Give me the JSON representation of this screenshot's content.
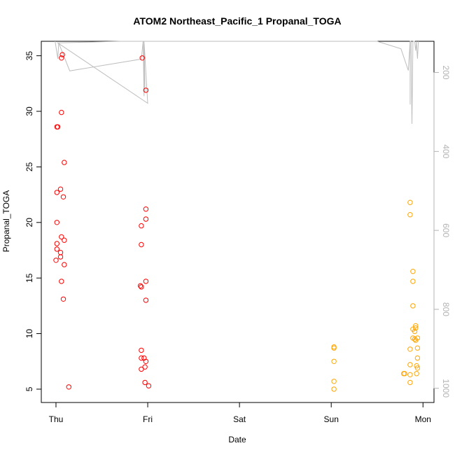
{
  "chart_data": {
    "type": "scatter",
    "title": "ATOM2 Northeast_Pacific_1 Propanal_TOGA",
    "xlabel": "Date",
    "ylabel": "Propanal_TOGA",
    "x_ticks": [
      "Thu",
      "Fri",
      "Sat",
      "Sun",
      "Mon"
    ],
    "xlim_days": [
      -0.16,
      4.12
    ],
    "ylim": [
      3.8,
      36.3
    ],
    "y_ticks": [
      5,
      10,
      15,
      20,
      25,
      30,
      35
    ],
    "y2_ticks": [
      200,
      400,
      600,
      800,
      1000
    ],
    "y2lim": [
      1036,
      121
    ],
    "grid": false,
    "legend": "none",
    "colors": {
      "series_a": "#ff0000",
      "series_b": "#ffa500",
      "altitude_line": "#bebebe",
      "right_axis": "#b3b3b3"
    },
    "series": [
      {
        "color": "#ff0000",
        "points": [
          {
            "x": 0.07,
            "y": 35.1
          },
          {
            "x": 0.06,
            "y": 34.8
          },
          {
            "x": 0.06,
            "y": 29.9
          },
          {
            "x": 0.01,
            "y": 28.6
          },
          {
            "x": 0.02,
            "y": 28.6
          },
          {
            "x": 0.09,
            "y": 25.4
          },
          {
            "x": 0.05,
            "y": 23.0
          },
          {
            "x": 0.01,
            "y": 22.7
          },
          {
            "x": 0.08,
            "y": 22.3
          },
          {
            "x": 0.01,
            "y": 20.0
          },
          {
            "x": 0.06,
            "y": 18.7
          },
          {
            "x": 0.09,
            "y": 18.4
          },
          {
            "x": 0.01,
            "y": 18.1
          },
          {
            "x": 0.01,
            "y": 17.6
          },
          {
            "x": 0.05,
            "y": 17.3
          },
          {
            "x": 0.05,
            "y": 16.9
          },
          {
            "x": 0.0,
            "y": 16.6
          },
          {
            "x": 0.09,
            "y": 16.2
          },
          {
            "x": 0.06,
            "y": 14.7
          },
          {
            "x": 0.08,
            "y": 13.1
          },
          {
            "x": 0.14,
            "y": 5.2
          },
          {
            "x": 0.94,
            "y": 34.8
          },
          {
            "x": 0.98,
            "y": 31.9
          },
          {
            "x": 0.98,
            "y": 21.2
          },
          {
            "x": 0.98,
            "y": 20.3
          },
          {
            "x": 0.93,
            "y": 19.7
          },
          {
            "x": 0.93,
            "y": 18.0
          },
          {
            "x": 0.98,
            "y": 14.7
          },
          {
            "x": 0.92,
            "y": 14.3
          },
          {
            "x": 0.93,
            "y": 14.2
          },
          {
            "x": 0.98,
            "y": 13.0
          },
          {
            "x": 0.93,
            "y": 8.5
          },
          {
            "x": 0.93,
            "y": 7.8
          },
          {
            "x": 0.96,
            "y": 7.8
          },
          {
            "x": 0.98,
            "y": 7.5
          },
          {
            "x": 0.97,
            "y": 7.0
          },
          {
            "x": 0.93,
            "y": 6.8
          },
          {
            "x": 0.97,
            "y": 5.6
          },
          {
            "x": 1.01,
            "y": 5.3
          }
        ]
      },
      {
        "color": "#ffa500",
        "points": [
          {
            "x": 3.03,
            "y": 8.8
          },
          {
            "x": 3.03,
            "y": 8.7
          },
          {
            "x": 3.03,
            "y": 7.5
          },
          {
            "x": 3.03,
            "y": 5.7
          },
          {
            "x": 3.03,
            "y": 5.0
          },
          {
            "x": 3.86,
            "y": 21.8
          },
          {
            "x": 3.86,
            "y": 20.7
          },
          {
            "x": 3.89,
            "y": 15.6
          },
          {
            "x": 3.89,
            "y": 14.7
          },
          {
            "x": 3.89,
            "y": 12.5
          },
          {
            "x": 3.92,
            "y": 10.7
          },
          {
            "x": 3.92,
            "y": 10.5
          },
          {
            "x": 3.89,
            "y": 10.4
          },
          {
            "x": 3.91,
            "y": 10.2
          },
          {
            "x": 3.94,
            "y": 9.6
          },
          {
            "x": 3.89,
            "y": 9.6
          },
          {
            "x": 3.91,
            "y": 9.5
          },
          {
            "x": 3.92,
            "y": 9.4
          },
          {
            "x": 3.86,
            "y": 8.6
          },
          {
            "x": 3.94,
            "y": 8.7
          },
          {
            "x": 3.94,
            "y": 7.8
          },
          {
            "x": 3.86,
            "y": 7.2
          },
          {
            "x": 3.93,
            "y": 7.1
          },
          {
            "x": 3.94,
            "y": 6.9
          },
          {
            "x": 3.79,
            "y": 6.4
          },
          {
            "x": 3.8,
            "y": 6.4
          },
          {
            "x": 3.86,
            "y": 6.3
          },
          {
            "x": 3.93,
            "y": 6.4
          },
          {
            "x": 3.86,
            "y": 5.6
          }
        ]
      }
    ],
    "altitude_line": {
      "points": [
        {
          "x": -0.01,
          "y2": 121
        },
        {
          "x": 0.02,
          "y2": 165
        },
        {
          "x": 0.03,
          "y2": 125
        },
        {
          "x": 0.15,
          "y2": 196
        },
        {
          "x": 0.93,
          "y2": 166
        },
        {
          "x": 0.95,
          "y2": 121
        },
        {
          "x": 0.96,
          "y2": 260
        },
        {
          "x": 0.96,
          "y2": 121
        },
        {
          "x": 0.97,
          "y2": 250
        },
        {
          "x": 0.96,
          "y2": 121
        },
        {
          "x": 1.0,
          "y2": 278
        },
        {
          "x": 0.02,
          "y2": 125
        },
        {
          "x": 0.7,
          "y2": 121
        },
        {
          "x": 2.1,
          "y2": 121
        },
        {
          "x": 3.5,
          "y2": 121
        },
        {
          "x": 3.76,
          "y2": 140
        },
        {
          "x": 3.84,
          "y2": 195
        },
        {
          "x": 3.86,
          "y2": 121
        },
        {
          "x": 3.86,
          "y2": 251
        },
        {
          "x": 3.86,
          "y2": 281
        },
        {
          "x": 3.86,
          "y2": 121
        },
        {
          "x": 3.87,
          "y2": 121
        },
        {
          "x": 3.88,
          "y2": 330
        },
        {
          "x": 3.89,
          "y2": 121
        },
        {
          "x": 3.91,
          "y2": 121
        },
        {
          "x": 3.92,
          "y2": 145
        },
        {
          "x": 3.93,
          "y2": 121
        },
        {
          "x": 3.93,
          "y2": 130
        },
        {
          "x": 3.94,
          "y2": 165
        },
        {
          "x": 3.95,
          "y2": 121
        }
      ]
    }
  }
}
